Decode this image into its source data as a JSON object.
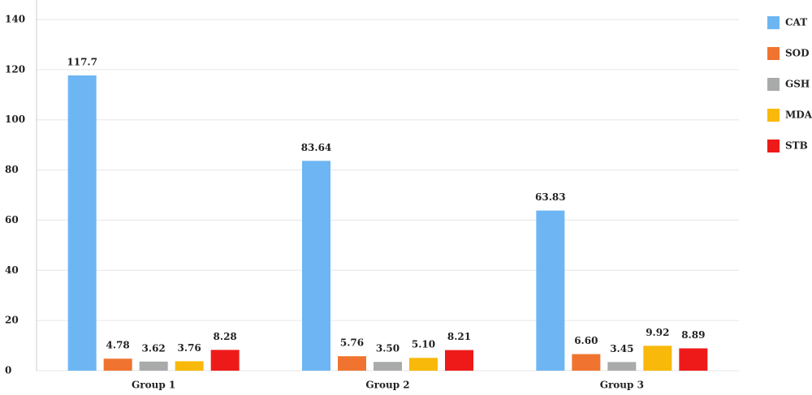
{
  "chart_data": {
    "type": "bar",
    "categories": [
      "Group 1",
      "Group 2",
      "Group 3"
    ],
    "series": [
      {
        "name": "CAT",
        "color": "#6db6f3",
        "values": [
          117.7,
          83.64,
          63.83
        ],
        "value_labels": [
          "117.7",
          "83.64",
          "63.83"
        ]
      },
      {
        "name": "SOD",
        "color": "#f07430",
        "values": [
          4.78,
          5.76,
          6.6
        ],
        "value_labels": [
          "4.78",
          "5.76",
          "6.60"
        ]
      },
      {
        "name": "GSH",
        "color": "#a9abaa",
        "values": [
          3.62,
          3.5,
          3.45
        ],
        "value_labels": [
          "3.62",
          "3.50",
          "3.45"
        ]
      },
      {
        "name": "MDA",
        "color": "#f9b90a",
        "values": [
          3.76,
          5.1,
          9.92
        ],
        "value_labels": [
          "3.76",
          "5.10",
          "9.92"
        ]
      },
      {
        "name": "STB",
        "color": "#ee1a1a",
        "values": [
          8.28,
          8.21,
          8.89
        ],
        "value_labels": [
          "8.28",
          "8.21",
          "8.89"
        ]
      }
    ],
    "ylim": [
      0,
      140
    ],
    "yticks": [
      0,
      20,
      40,
      60,
      80,
      100,
      120,
      140
    ],
    "grid": true,
    "legend": "right"
  }
}
